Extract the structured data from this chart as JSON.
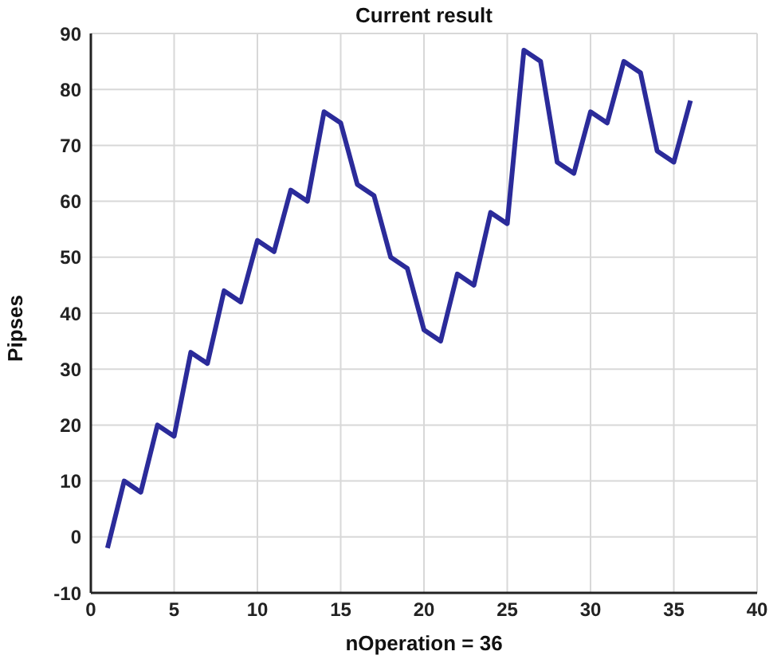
{
  "chart_data": {
    "type": "line",
    "title": "Current result",
    "xlabel": "nOperation = 36",
    "ylabel": "Pipses",
    "x": [
      1,
      2,
      3,
      4,
      5,
      6,
      7,
      8,
      9,
      10,
      11,
      12,
      13,
      14,
      15,
      16,
      17,
      18,
      19,
      20,
      21,
      22,
      23,
      24,
      25,
      26,
      27,
      28,
      29,
      30,
      31,
      32,
      33,
      34,
      35,
      36
    ],
    "series": [
      {
        "color": "#2b2b9a",
        "values": [
          -2,
          10,
          8,
          20,
          18,
          33,
          31,
          44,
          42,
          53,
          51,
          62,
          60,
          76,
          74,
          63,
          61,
          50,
          48,
          37,
          35,
          47,
          45,
          58,
          56,
          87,
          85,
          67,
          65,
          76,
          74,
          85,
          83,
          69,
          67,
          78
        ]
      }
    ],
    "xlim": [
      0,
      40
    ],
    "xticks": [
      0,
      5,
      10,
      15,
      20,
      25,
      30,
      35,
      40
    ],
    "ylim": [
      -10,
      90
    ],
    "yticks": [
      -10,
      0,
      10,
      20,
      30,
      40,
      50,
      60,
      70,
      80,
      90
    ],
    "grid": true,
    "marker": "none",
    "line_style": "solid"
  }
}
